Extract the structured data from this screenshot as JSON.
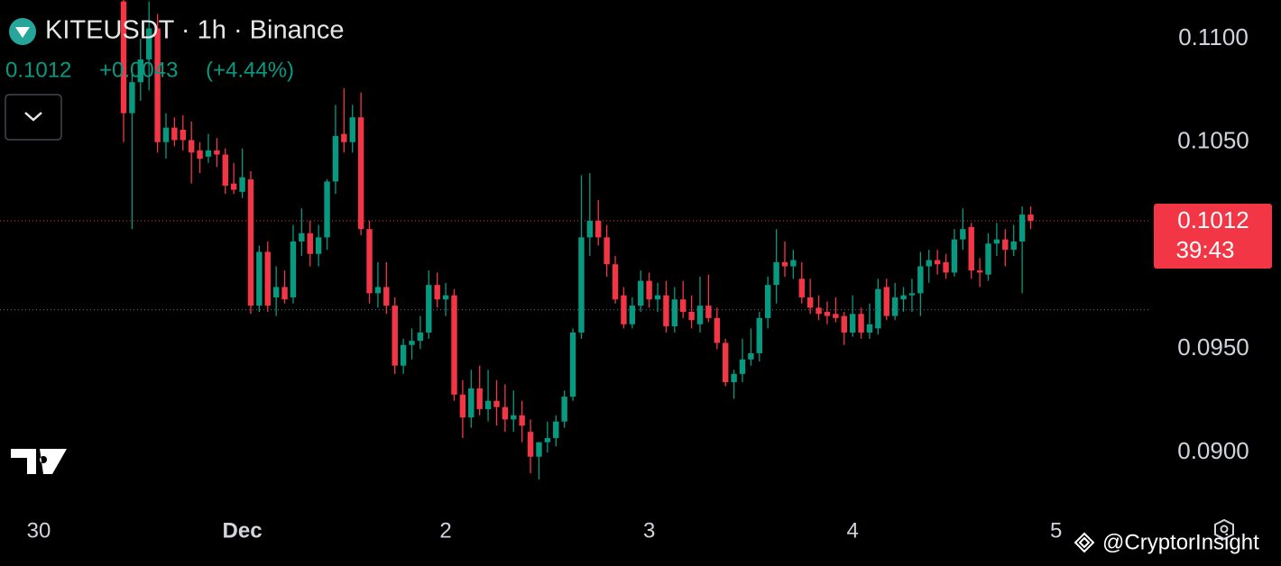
{
  "chart_data": {
    "type": "candlestick",
    "symbol_line": "KITEUSDT · 1h · Binance",
    "header_price": "0.1012",
    "header_change": "+0.0043",
    "header_change_pct": "(+4.44%)",
    "last_price": 0.1012,
    "countdown": "39:43",
    "reference_line": 0.0969,
    "watermark": "@CryptorInsight",
    "up_color": "#089981",
    "down_color": "#f23645",
    "xlim": [
      -4.58,
      131.1
    ],
    "ylim": [
      0.08748,
      0.11187
    ],
    "xticks": [
      {
        "value": 0,
        "label": "30"
      },
      {
        "value": 24,
        "label": "Dec"
      },
      {
        "value": 48,
        "label": "2"
      },
      {
        "value": 72,
        "label": "3"
      },
      {
        "value": 96,
        "label": "4"
      },
      {
        "value": 120,
        "label": "5"
      }
    ],
    "yticks": [
      {
        "value": 0.09,
        "label": "0.0900"
      },
      {
        "value": 0.095,
        "label": "0.0950"
      },
      {
        "value": 0.105,
        "label": "0.1050"
      },
      {
        "value": 0.11,
        "label": "0.1100"
      }
    ],
    "x": [
      10,
      11,
      12,
      13,
      14,
      15,
      16,
      17,
      18,
      19,
      20,
      21,
      22,
      23,
      24,
      25,
      26,
      27,
      28,
      29,
      30,
      31,
      32,
      33,
      34,
      35,
      36,
      37,
      38,
      39,
      40,
      41,
      42,
      43,
      44,
      45,
      46,
      47,
      48,
      49,
      50,
      51,
      52,
      53,
      54,
      55,
      56,
      57,
      58,
      59,
      60,
      61,
      62,
      63,
      64,
      65,
      66,
      67,
      68,
      69,
      70,
      71,
      72,
      73,
      74,
      75,
      76,
      77,
      78,
      79,
      80,
      81,
      82,
      83,
      84,
      85,
      86,
      87,
      88,
      89,
      90,
      91,
      92,
      93,
      94,
      95,
      96,
      97,
      98,
      99,
      100,
      101,
      102,
      103,
      104,
      105,
      106,
      107,
      108,
      109,
      110,
      111,
      112,
      113,
      114,
      115,
      116,
      117
    ],
    "open": [
      0.1118,
      0.1064,
      0.1079,
      0.109,
      0.1105,
      0.105,
      0.1057,
      0.1056,
      0.1051,
      0.1046,
      0.1043,
      0.1046,
      0.1044,
      0.103,
      0.1026,
      0.1032,
      0.0971,
      0.0997,
      0.0975,
      0.098,
      0.0975,
      0.1002,
      0.1006,
      0.0996,
      0.1004,
      0.1031,
      0.1054,
      0.105,
      0.1062,
      0.1008,
      0.0977,
      0.098,
      0.0971,
      0.0942,
      0.0952,
      0.0954,
      0.0958,
      0.0981,
      0.0974,
      0.0976,
      0.0928,
      0.0917,
      0.0931,
      0.0921,
      0.0925,
      0.0922,
      0.0916,
      0.0918,
      0.091,
      0.0898,
      0.0905,
      0.0907,
      0.0915,
      0.0927,
      0.0958,
      0.1004,
      0.1012,
      0.1004,
      0.0991,
      0.0976,
      0.0962,
      0.0971,
      0.0983,
      0.0974,
      0.0976,
      0.0961,
      0.0974,
      0.0968,
      0.0962,
      0.0971,
      0.0965,
      0.0953,
      0.0934,
      0.0938,
      0.0945,
      0.0948,
      0.0965,
      0.0981,
      0.0992,
      0.099,
      0.0984,
      0.0975,
      0.097,
      0.0968,
      0.0967,
      0.0966,
      0.0958,
      0.0967,
      0.0958,
      0.096,
      0.098,
      0.0966,
      0.0974,
      0.0976,
      0.0977,
      0.099,
      0.0993,
      0.0992,
      0.0987,
      0.1003,
      0.1009,
      0.0988,
      0.0986,
      0.1001,
      0.1003,
      0.0998,
      0.1002,
      0.1015
    ],
    "high": [
      0.1125,
      0.1085,
      0.11,
      0.1118,
      0.1112,
      0.1064,
      0.1062,
      0.1063,
      0.106,
      0.105,
      0.1054,
      0.1052,
      0.1047,
      0.104,
      0.1047,
      0.1036,
      0.1,
      0.1002,
      0.099,
      0.0988,
      0.101,
      0.1018,
      0.1012,
      0.101,
      0.1032,
      0.1068,
      0.1076,
      0.1068,
      0.1074,
      0.1012,
      0.0992,
      0.0992,
      0.0975,
      0.0955,
      0.096,
      0.0966,
      0.0988,
      0.0987,
      0.0982,
      0.0979,
      0.0935,
      0.094,
      0.0942,
      0.094,
      0.0935,
      0.0933,
      0.093,
      0.0925,
      0.0916,
      0.0905,
      0.0915,
      0.0918,
      0.093,
      0.096,
      0.1034,
      0.1035,
      0.1022,
      0.101,
      0.0995,
      0.098,
      0.0975,
      0.0988,
      0.0987,
      0.0982,
      0.0983,
      0.098,
      0.0983,
      0.0976,
      0.0985,
      0.0986,
      0.097,
      0.0955,
      0.094,
      0.0955,
      0.096,
      0.0968,
      0.0985,
      0.1008,
      0.1002,
      0.0998,
      0.0992,
      0.0984,
      0.0976,
      0.0973,
      0.0975,
      0.0968,
      0.0976,
      0.097,
      0.0972,
      0.0984,
      0.0984,
      0.0982,
      0.098,
      0.0984,
      0.0997,
      0.0998,
      0.0998,
      0.0996,
      0.1008,
      0.1018,
      0.1011,
      0.0994,
      0.1006,
      0.1011,
      0.1008,
      0.101,
      0.1019,
      0.1019
    ],
    "low": [
      0.105,
      0.1008,
      0.107,
      0.1075,
      0.1045,
      0.1042,
      0.1048,
      0.1046,
      0.103,
      0.1035,
      0.104,
      0.1038,
      0.1025,
      0.1025,
      0.1023,
      0.0967,
      0.0968,
      0.0968,
      0.0966,
      0.0972,
      0.0972,
      0.0995,
      0.099,
      0.099,
      0.0998,
      0.1025,
      0.1045,
      0.1045,
      0.1005,
      0.0972,
      0.097,
      0.0967,
      0.0938,
      0.0938,
      0.0945,
      0.095,
      0.0955,
      0.097,
      0.0966,
      0.0925,
      0.0907,
      0.0912,
      0.0918,
      0.0915,
      0.0913,
      0.091,
      0.091,
      0.0905,
      0.089,
      0.0887,
      0.09,
      0.0903,
      0.0912,
      0.0925,
      0.0955,
      0.0995,
      0.1,
      0.0985,
      0.0972,
      0.096,
      0.096,
      0.0968,
      0.097,
      0.0968,
      0.0958,
      0.0958,
      0.0965,
      0.096,
      0.0958,
      0.0963,
      0.095,
      0.0932,
      0.0926,
      0.0934,
      0.0942,
      0.0944,
      0.096,
      0.0972,
      0.0985,
      0.0984,
      0.0972,
      0.0967,
      0.0964,
      0.0962,
      0.0963,
      0.0952,
      0.0956,
      0.0955,
      0.0955,
      0.0957,
      0.0964,
      0.0964,
      0.0968,
      0.0968,
      0.0966,
      0.0982,
      0.0986,
      0.0984,
      0.0985,
      0.0998,
      0.0984,
      0.098,
      0.0983,
      0.0995,
      0.099,
      0.0995,
      0.0977,
      0.1008
    ],
    "close": [
      0.1064,
      0.1079,
      0.109,
      0.1105,
      0.105,
      0.1057,
      0.1051,
      0.1051,
      0.1045,
      0.1042,
      0.1046,
      0.1044,
      0.1029,
      0.1027,
      0.1033,
      0.0971,
      0.0997,
      0.0971,
      0.098,
      0.0974,
      0.1002,
      0.1006,
      0.0996,
      0.1004,
      0.1031,
      0.1053,
      0.105,
      0.1062,
      0.1008,
      0.0977,
      0.098,
      0.0971,
      0.0942,
      0.0952,
      0.0954,
      0.0958,
      0.0981,
      0.0974,
      0.0976,
      0.0928,
      0.0917,
      0.0931,
      0.0921,
      0.0925,
      0.0922,
      0.0916,
      0.0918,
      0.0913,
      0.0898,
      0.0905,
      0.0907,
      0.0915,
      0.0927,
      0.0958,
      0.1004,
      0.1012,
      0.1004,
      0.0991,
      0.0974,
      0.0962,
      0.0971,
      0.0983,
      0.0974,
      0.0976,
      0.0961,
      0.0974,
      0.0968,
      0.0964,
      0.0971,
      0.0965,
      0.0953,
      0.0934,
      0.0938,
      0.0945,
      0.0948,
      0.0965,
      0.0981,
      0.0992,
      0.099,
      0.0993,
      0.0975,
      0.097,
      0.0967,
      0.0966,
      0.0965,
      0.0958,
      0.0967,
      0.0958,
      0.0962,
      0.0979,
      0.0966,
      0.0975,
      0.0976,
      0.0977,
      0.099,
      0.0993,
      0.0991,
      0.0987,
      0.1003,
      0.1008,
      0.0988,
      0.0987,
      0.1001,
      0.1003,
      0.0998,
      0.1002,
      0.1015,
      0.1012
    ]
  }
}
